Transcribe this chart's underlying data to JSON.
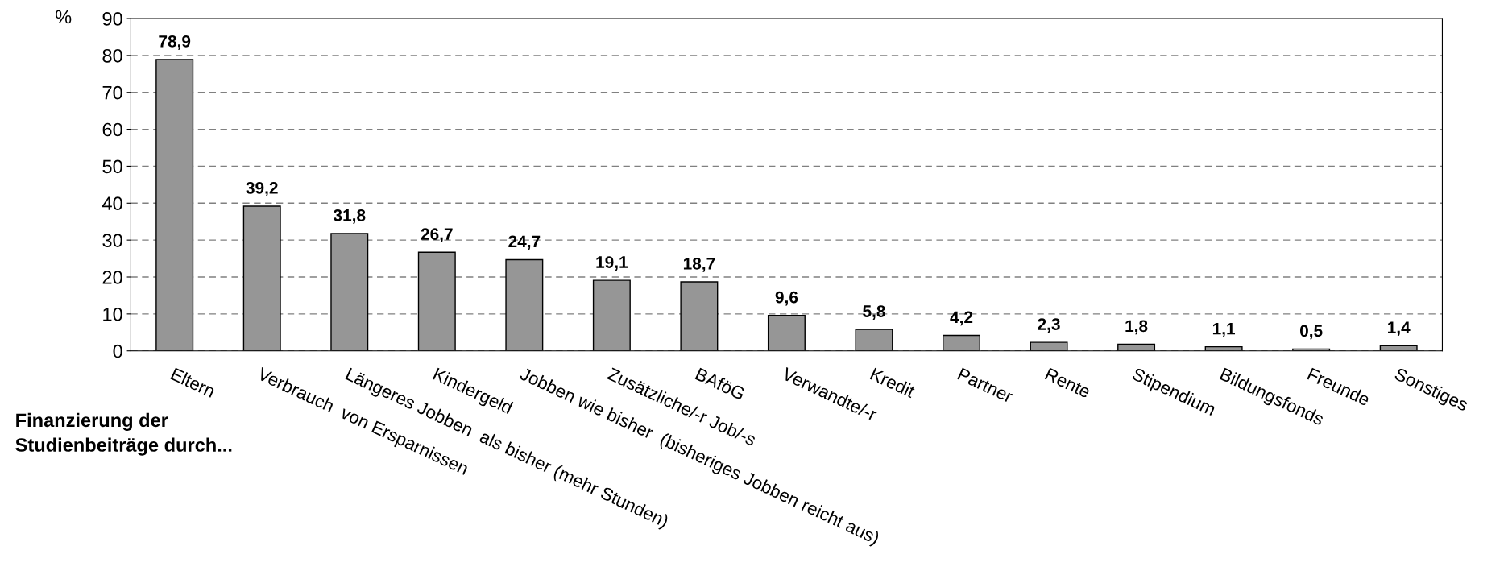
{
  "chart_data": {
    "type": "bar",
    "title": "Finanzierung der\nStudienbeiträge durch...",
    "ylabel": "%",
    "categories": [
      "Eltern",
      "Verbrauch  von Ersparnissen",
      "Längeres Jobben  als bisher (mehr Stunden)",
      "Kindergeld",
      "Jobben wie bisher  (bisheriges Jobben reicht aus)",
      "Zusätzliche/-r Job/-s",
      "BAföG",
      "Verwandte/-r",
      "Kredit",
      "Partner",
      "Rente",
      "Stipendium",
      "Bildungsfonds",
      "Freunde",
      "Sonstiges"
    ],
    "values": [
      78.9,
      39.2,
      31.8,
      26.7,
      24.7,
      19.1,
      18.7,
      9.6,
      5.8,
      4.2,
      2.3,
      1.8,
      1.1,
      0.5,
      1.4
    ],
    "value_labels": [
      "78,9",
      "39,2",
      "31,8",
      "26,7",
      "24,7",
      "19,1",
      "18,7",
      "9,6",
      "5,8",
      "4,2",
      "2,3",
      "1,8",
      "1,1",
      "0,5",
      "1,4"
    ],
    "color": "#969696",
    "ylim": [
      0,
      90
    ],
    "yticks": [
      0,
      10,
      20,
      30,
      40,
      50,
      60,
      70,
      80,
      90
    ],
    "grid": "y"
  }
}
